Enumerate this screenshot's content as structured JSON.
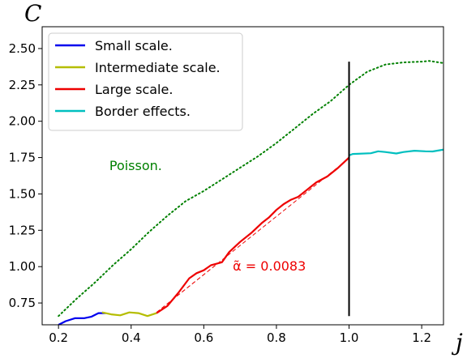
{
  "chart_data": {
    "type": "line",
    "xlabel": "j",
    "ylabel": "C",
    "xlim": [
      0.155,
      1.26
    ],
    "ylim": [
      0.6,
      2.65
    ],
    "x_ticks": [
      "0.2",
      "0.4",
      "0.6",
      "0.8",
      "1.0",
      "1.2"
    ],
    "y_ticks": [
      "0.75",
      "1.00",
      "1.25",
      "1.50",
      "1.75",
      "2.00",
      "2.25",
      "2.50"
    ],
    "grid": false,
    "legend_position": "top-left",
    "series": [
      {
        "name": "Small scale.",
        "color": "#0000ee",
        "style": "solid",
        "x": [
          0.2,
          0.22,
          0.245,
          0.27,
          0.29,
          0.31,
          0.33
        ],
        "y": [
          0.6,
          0.625,
          0.645,
          0.645,
          0.655,
          0.68,
          0.68
        ]
      },
      {
        "name": "Intermediate scale.",
        "color": "#b5bd00",
        "style": "solid",
        "x": [
          0.32,
          0.345,
          0.37,
          0.395,
          0.42,
          0.445,
          0.47
        ],
        "y": [
          0.685,
          0.672,
          0.665,
          0.685,
          0.68,
          0.66,
          0.68
        ]
      },
      {
        "name": "Large scale.",
        "color": "#ee0000",
        "style": "solid",
        "x": [
          0.47,
          0.5,
          0.53,
          0.56,
          0.58,
          0.6,
          0.62,
          0.65,
          0.67,
          0.7,
          0.73,
          0.76,
          0.78,
          0.8,
          0.82,
          0.84,
          0.86,
          0.88,
          0.91,
          0.94,
          0.97,
          1.0
        ],
        "y": [
          0.68,
          0.73,
          0.82,
          0.92,
          0.955,
          0.975,
          1.01,
          1.03,
          1.1,
          1.17,
          1.23,
          1.3,
          1.34,
          1.39,
          1.43,
          1.46,
          1.48,
          1.52,
          1.58,
          1.62,
          1.68,
          1.75
        ]
      },
      {
        "name": "Border effects.",
        "color": "#00bfbf",
        "style": "solid",
        "x": [
          1.0,
          1.01,
          1.06,
          1.08,
          1.1,
          1.13,
          1.15,
          1.18,
          1.21,
          1.23,
          1.26
        ],
        "y": [
          1.765,
          1.775,
          1.78,
          1.793,
          1.788,
          1.778,
          1.788,
          1.797,
          1.793,
          1.792,
          1.805
        ]
      },
      {
        "name": "Poisson.",
        "color": "#008000",
        "style": "dotted",
        "x": [
          0.2,
          0.25,
          0.3,
          0.35,
          0.4,
          0.45,
          0.5,
          0.55,
          0.6,
          0.65,
          0.7,
          0.75,
          0.8,
          0.85,
          0.9,
          0.95,
          1.0,
          1.05,
          1.1,
          1.15,
          1.2,
          1.22,
          1.26
        ],
        "y": [
          0.66,
          0.78,
          0.89,
          1.01,
          1.12,
          1.24,
          1.35,
          1.45,
          1.52,
          1.6,
          1.68,
          1.76,
          1.85,
          1.95,
          2.05,
          2.14,
          2.25,
          2.34,
          2.39,
          2.405,
          2.41,
          2.415,
          2.4
        ]
      },
      {
        "name": "fit",
        "color": "#ee0000",
        "style": "dashed",
        "x": [
          0.47,
          1.0
        ],
        "y": [
          0.685,
          1.745
        ]
      }
    ],
    "vertical_line": {
      "x": 1.0,
      "y_from": 0.66,
      "y_to": 2.41,
      "color": "#000000"
    },
    "annotations": [
      {
        "text": "Poisson.",
        "x": 0.34,
        "y": 1.665,
        "color": "#008000"
      },
      {
        "text": "α̃ = 0.0083",
        "x": 0.68,
        "y": 0.972,
        "color": "#ee0000"
      }
    ]
  },
  "legend": [
    "Small scale.",
    "Intermediate scale.",
    "Large scale.",
    "Border effects."
  ]
}
